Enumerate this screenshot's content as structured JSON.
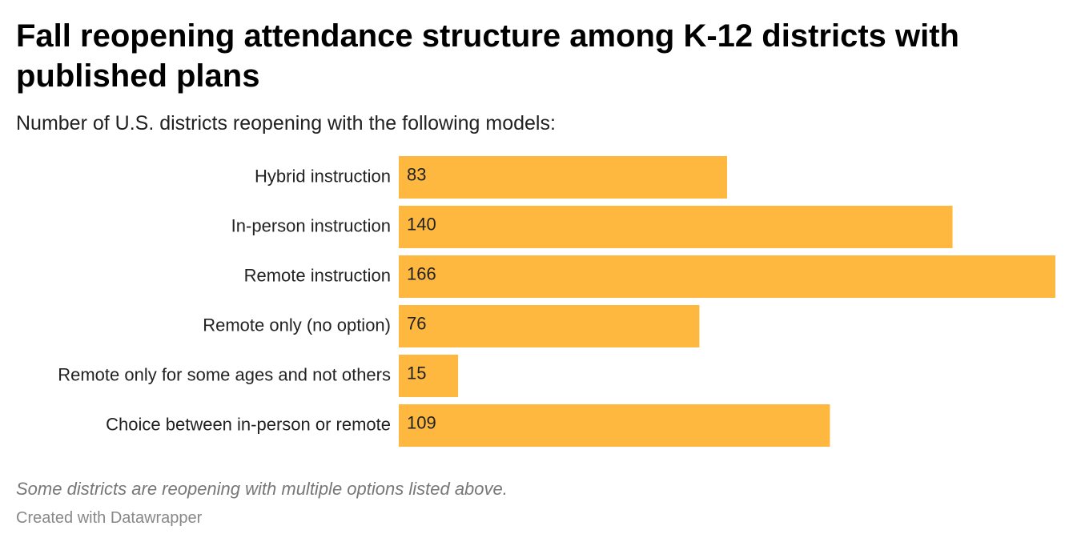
{
  "chart_data": {
    "type": "bar",
    "title": "Fall reopening attendance structure among K-12 districts with published plans",
    "subtitle": "Number of U.S. districts reopening with the following models:",
    "categories": [
      "Hybrid instruction",
      "In-person instruction",
      "Remote instruction",
      "Remote only (no option)",
      "Remote only for some ages and not others",
      "Choice between in-person or remote"
    ],
    "values": [
      83,
      140,
      166,
      76,
      15,
      109
    ],
    "color": "#ffb83f",
    "notes": "Some districts are reopening with multiple options listed above.",
    "credit": "Created with Datawrapper"
  }
}
